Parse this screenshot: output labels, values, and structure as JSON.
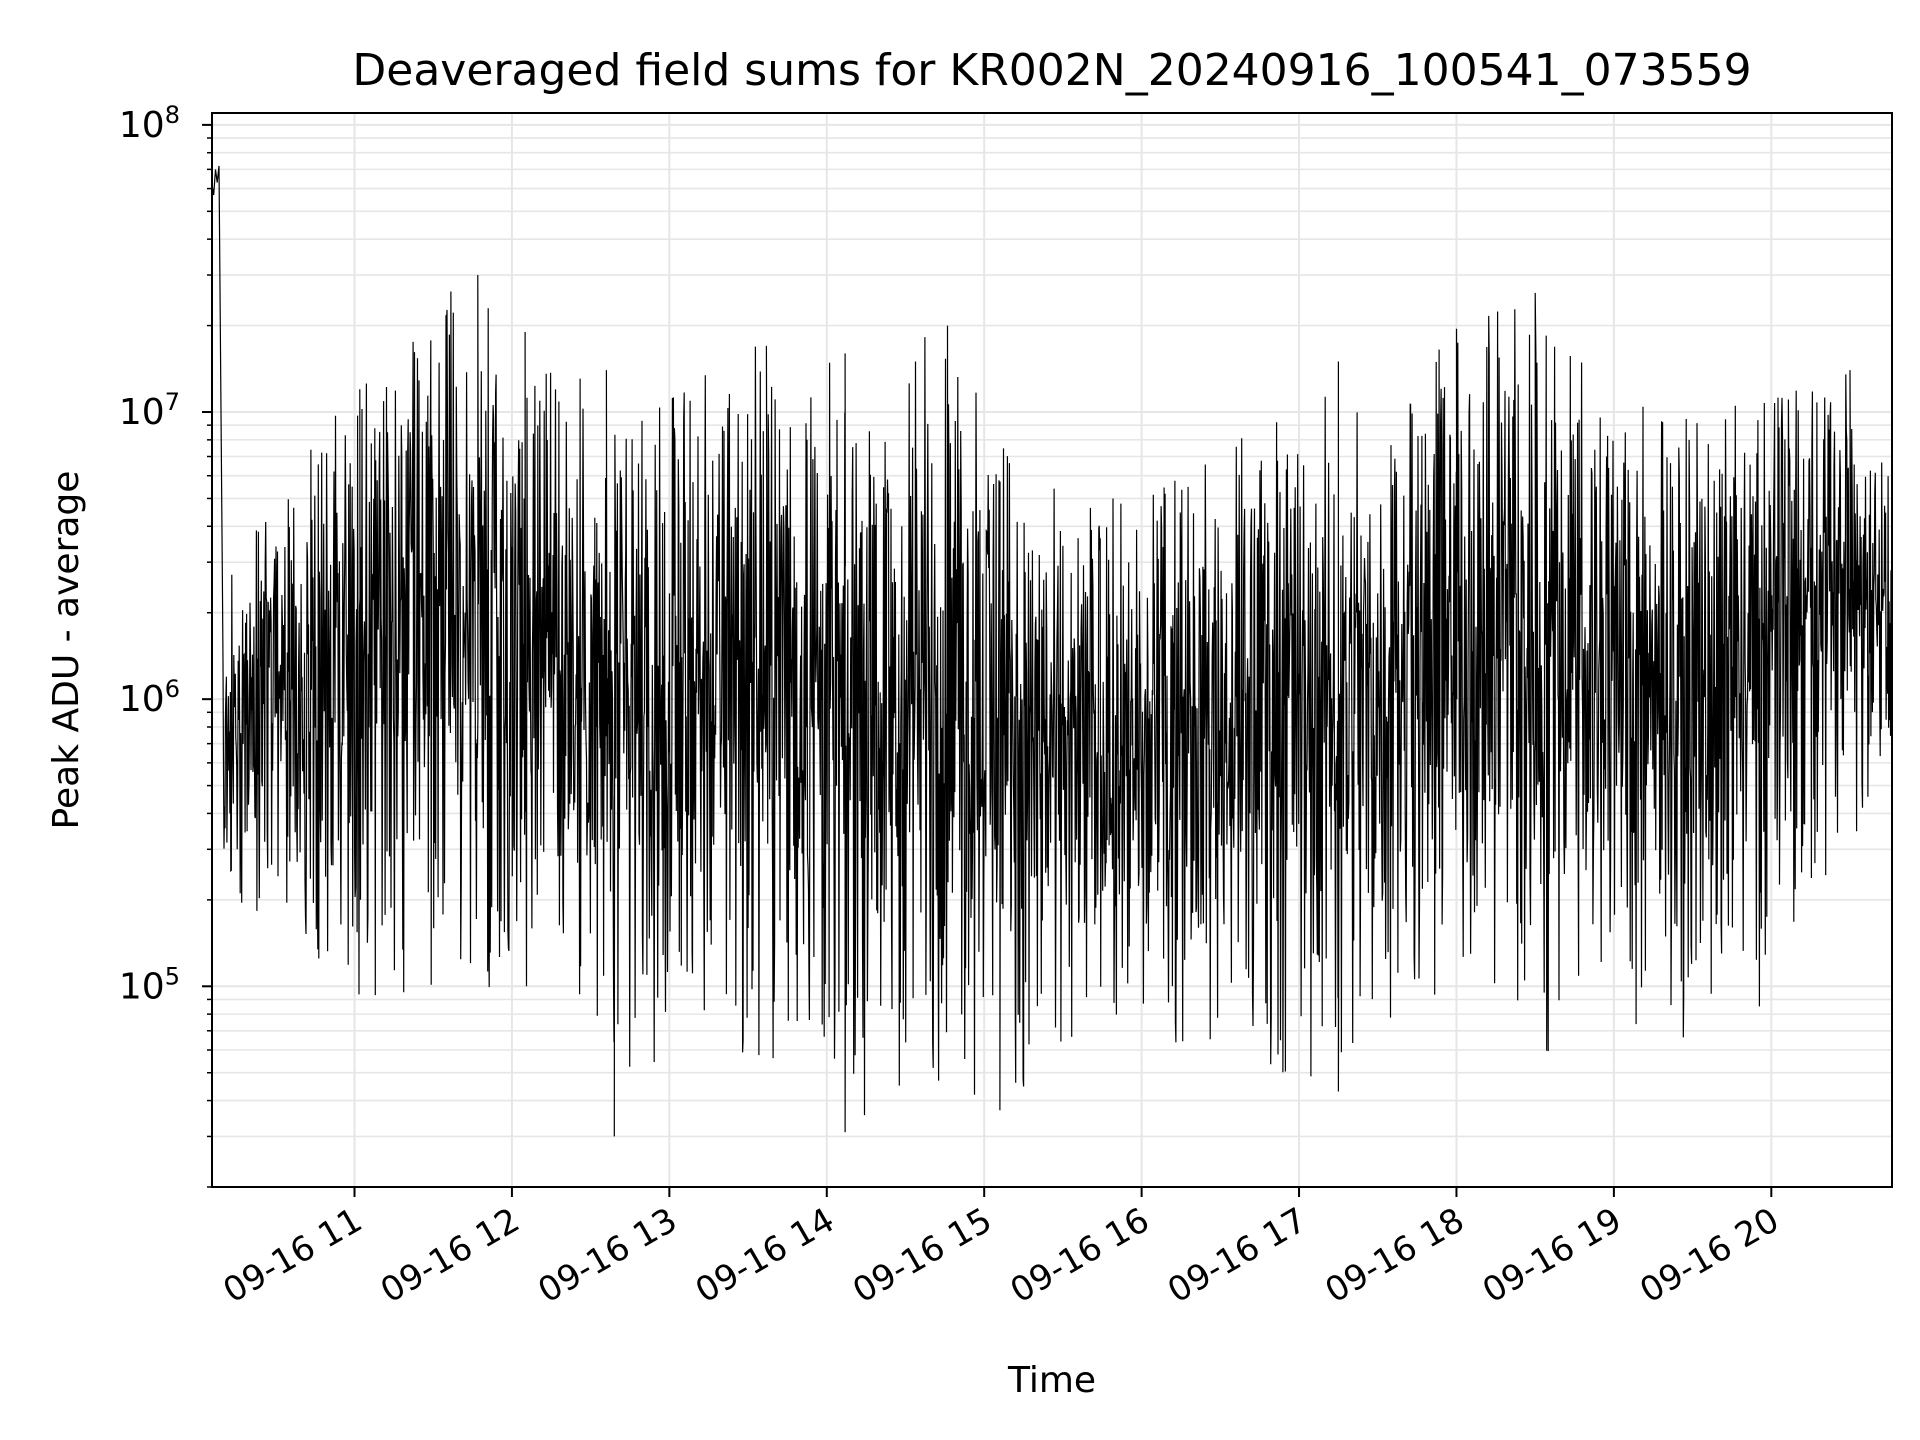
{
  "chart_data": {
    "type": "line",
    "title": "Deaveraged field sums for KR002N_20240916_100541_073559",
    "xlabel": "Time",
    "ylabel": "Peak ADU - average",
    "yscale": "log",
    "ylim": [
      20000,
      110000000
    ],
    "xlim": [
      "2024-09-16 10:05:41",
      "2024-09-16 20:46:00"
    ],
    "x_ticks": [
      {
        "label": "09-16 11",
        "time": "2024-09-16 11:00"
      },
      {
        "label": "09-16 12",
        "time": "2024-09-16 12:00"
      },
      {
        "label": "09-16 13",
        "time": "2024-09-16 13:00"
      },
      {
        "label": "09-16 14",
        "time": "2024-09-16 14:00"
      },
      {
        "label": "09-16 15",
        "time": "2024-09-16 15:00"
      },
      {
        "label": "09-16 16",
        "time": "2024-09-16 16:00"
      },
      {
        "label": "09-16 17",
        "time": "2024-09-16 17:00"
      },
      {
        "label": "09-16 18",
        "time": "2024-09-16 18:00"
      },
      {
        "label": "09-16 19",
        "time": "2024-09-16 19:00"
      },
      {
        "label": "09-16 20",
        "time": "2024-09-16 20:00"
      }
    ],
    "y_ticks": [
      {
        "base": "10",
        "exp": "5",
        "value": 100000
      },
      {
        "base": "10",
        "exp": "6",
        "value": 1000000
      },
      {
        "base": "10",
        "exp": "7",
        "value": 10000000
      },
      {
        "base": "10",
        "exp": "8",
        "value": 100000000
      }
    ],
    "grid": true,
    "line_color": "#000000",
    "grid_color": "#e6e6e6",
    "sampling_note": "noisy series rendered as a representative envelope",
    "envelope": [
      {
        "time": "2024-09-16 10:05",
        "low": 1500000,
        "high": 55000000
      },
      {
        "time": "2024-09-16 10:06",
        "low": 1500000,
        "high": 72000000
      },
      {
        "time": "2024-09-16 10:10",
        "low": 160000,
        "high": 2500000
      },
      {
        "time": "2024-09-16 10:30",
        "low": 150000,
        "high": 5000000
      },
      {
        "time": "2024-09-16 11:00",
        "low": 90000,
        "high": 12000000
      },
      {
        "time": "2024-09-16 11:30",
        "low": 80000,
        "high": 20000000
      },
      {
        "time": "2024-09-16 11:40",
        "low": 78000,
        "high": 30000000
      },
      {
        "time": "2024-09-16 12:00",
        "low": 100000,
        "high": 19000000
      },
      {
        "time": "2024-09-16 12:30",
        "low": 70000,
        "high": 14000000
      },
      {
        "time": "2024-09-16 12:40",
        "low": 30000,
        "high": 8000000
      },
      {
        "time": "2024-09-16 13:00",
        "low": 55000,
        "high": 11000000
      },
      {
        "time": "2024-09-16 13:30",
        "low": 50000,
        "high": 17000000
      },
      {
        "time": "2024-09-16 14:00",
        "low": 55000,
        "high": 16000000
      },
      {
        "time": "2024-09-16 14:10",
        "low": 30000,
        "high": 8000000
      },
      {
        "time": "2024-09-16 14:40",
        "low": 45000,
        "high": 20000000
      },
      {
        "time": "2024-09-16 15:10",
        "low": 38000,
        "high": 8000000
      },
      {
        "time": "2024-09-16 15:30",
        "low": 58000,
        "high": 5000000
      },
      {
        "time": "2024-09-16 16:00",
        "low": 50000,
        "high": 5000000
      },
      {
        "time": "2024-09-16 16:30",
        "low": 55000,
        "high": 7000000
      },
      {
        "time": "2024-09-16 17:00",
        "low": 45000,
        "high": 12000000
      },
      {
        "time": "2024-09-16 17:30",
        "low": 65000,
        "high": 10000000
      },
      {
        "time": "2024-09-16 18:00",
        "low": 70000,
        "high": 19000000
      },
      {
        "time": "2024-09-16 18:30",
        "low": 55000,
        "high": 26000000
      },
      {
        "time": "2024-09-16 19:00",
        "low": 80000,
        "high": 11000000
      },
      {
        "time": "2024-09-16 19:30",
        "low": 60000,
        "high": 10000000
      },
      {
        "time": "2024-09-16 20:00",
        "low": 90000,
        "high": 11000000
      },
      {
        "time": "2024-09-16 20:30",
        "low": 300000,
        "high": 14000000
      },
      {
        "time": "2024-09-16 20:45",
        "low": 700000,
        "high": 9500000
      }
    ],
    "spikes": [
      {
        "time": "2024-09-16 11:02",
        "value": 12000000
      },
      {
        "time": "2024-09-16 11:35",
        "value": 20000000
      },
      {
        "time": "2024-09-16 11:47",
        "value": 30000000
      },
      {
        "time": "2024-09-16 12:05",
        "value": 19000000
      },
      {
        "time": "2024-09-16 12:36",
        "value": 14000000
      },
      {
        "time": "2024-09-16 13:37",
        "value": 17000000
      },
      {
        "time": "2024-09-16 14:07",
        "value": 16000000
      },
      {
        "time": "2024-09-16 14:46",
        "value": 20000000
      },
      {
        "time": "2024-09-16 17:15",
        "value": 15000000
      },
      {
        "time": "2024-09-16 18:00",
        "value": 19500000
      },
      {
        "time": "2024-09-16 18:30",
        "value": 26000000
      },
      {
        "time": "2024-09-16 20:30",
        "value": 14000000
      },
      {
        "time": "2024-09-16 12:39",
        "value": 30000
      },
      {
        "time": "2024-09-16 14:07",
        "value": 31000
      },
      {
        "time": "2024-09-16 15:06",
        "value": 37000
      },
      {
        "time": "2024-09-16 17:15",
        "value": 43000
      }
    ]
  }
}
